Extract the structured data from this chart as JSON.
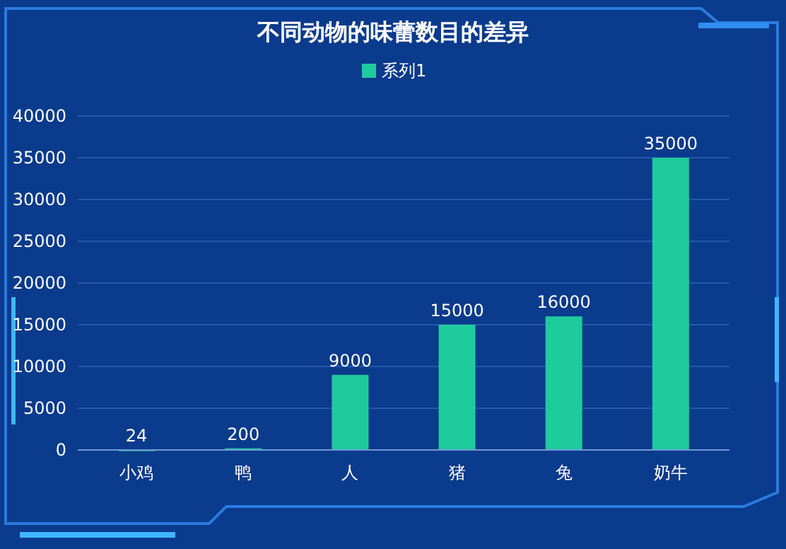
{
  "chart_data": {
    "type": "bar",
    "title": "不同动物的味蕾数目的差异",
    "categories": [
      "小鸡",
      "鸭",
      "人",
      "猪",
      "兔",
      "奶牛"
    ],
    "series": [
      {
        "name": "系列1",
        "color": "#1ecb9c",
        "values": [
          24,
          200,
          9000,
          15000,
          16000,
          35000
        ]
      }
    ],
    "ylim": [
      0,
      40000
    ],
    "yticks": [
      0,
      5000,
      10000,
      15000,
      20000,
      25000,
      30000,
      35000,
      40000
    ],
    "grid": "y",
    "legend": "top",
    "data_labels": true
  }
}
